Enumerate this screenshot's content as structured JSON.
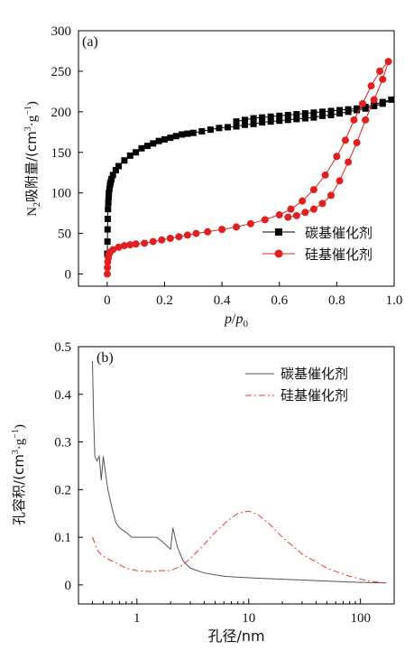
{
  "chart_data": [
    {
      "type": "scatter",
      "panel_label": "(a)",
      "ylabel": {
        "pre": "N",
        "sub": "2",
        "mid": "吸附量/(cm",
        "sup1": "3",
        "dot": "·g",
        "sup2": "−1",
        "post": ")"
      },
      "xlabel": {
        "p": "p",
        "slash": "/",
        "p0": "p",
        "p0_sub": "0"
      },
      "xlim": [
        -0.1,
        1.0
      ],
      "ylim": [
        -15,
        300
      ],
      "x_ticks": [
        "0",
        "0.2",
        "0.4",
        "0.6",
        "0.8",
        "1.0"
      ],
      "y_ticks": [
        "0",
        "50",
        "100",
        "150",
        "200",
        "250",
        "300"
      ],
      "legend_position": "bottom-right",
      "series": [
        {
          "name": "碳基催化剂",
          "color": "#000000",
          "marker": "square",
          "x": [
            0.0005,
            0.001,
            0.0015,
            0.002,
            0.003,
            0.004,
            0.005,
            0.006,
            0.008,
            0.01,
            0.012,
            0.015,
            0.02,
            0.03,
            0.04,
            0.06,
            0.08,
            0.1,
            0.12,
            0.14,
            0.16,
            0.18,
            0.2,
            0.22,
            0.24,
            0.26,
            0.28,
            0.3,
            0.33,
            0.36,
            0.39,
            0.42,
            0.45,
            0.48,
            0.51,
            0.54,
            0.57,
            0.6,
            0.63,
            0.66,
            0.69,
            0.72,
            0.75,
            0.78,
            0.81,
            0.84,
            0.87,
            0.9,
            0.93,
            0.96,
            0.99,
            0.96,
            0.93,
            0.9,
            0.87,
            0.84,
            0.81,
            0.78,
            0.75,
            0.72,
            0.69,
            0.66,
            0.63,
            0.6,
            0.57,
            0.54,
            0.51,
            0.48,
            0.45
          ],
          "y": [
            25,
            40,
            55,
            68,
            80,
            88,
            95,
            100,
            105,
            110,
            113,
            117,
            122,
            128,
            133,
            140,
            146,
            150,
            155,
            158,
            161,
            164,
            166,
            168,
            170,
            172,
            173,
            174,
            176,
            178,
            180,
            181,
            182,
            184,
            185,
            187,
            188,
            189,
            190,
            191,
            192,
            193,
            195,
            196,
            198,
            200,
            202,
            204,
            207,
            210,
            215,
            212,
            209,
            206,
            204,
            203,
            202,
            201,
            200,
            199,
            198,
            197,
            196,
            195,
            194,
            193,
            192,
            190,
            188
          ]
        },
        {
          "name": "硅基催化剂",
          "color": "#e02020",
          "marker": "circle",
          "x": [
            0.0005,
            0.001,
            0.002,
            0.004,
            0.006,
            0.01,
            0.02,
            0.04,
            0.06,
            0.08,
            0.1,
            0.13,
            0.16,
            0.19,
            0.22,
            0.25,
            0.28,
            0.31,
            0.35,
            0.4,
            0.45,
            0.5,
            0.55,
            0.6,
            0.64,
            0.68,
            0.72,
            0.76,
            0.8,
            0.83,
            0.86,
            0.89,
            0.92,
            0.95,
            0.98,
            0.96,
            0.93,
            0.9,
            0.87,
            0.84,
            0.81,
            0.78,
            0.75,
            0.72,
            0.69,
            0.66,
            0.63
          ],
          "y": [
            0,
            8,
            15,
            20,
            24,
            27,
            30,
            33,
            35,
            36,
            37,
            38,
            40,
            42,
            44,
            46,
            48,
            50,
            52,
            55,
            58,
            62,
            67,
            73,
            80,
            90,
            104,
            122,
            145,
            165,
            190,
            210,
            232,
            250,
            262,
            240,
            215,
            190,
            162,
            138,
            115,
            97,
            87,
            80,
            76,
            72,
            70
          ]
        }
      ]
    },
    {
      "type": "line",
      "panel_label": "(b)",
      "ylabel": {
        "pre": "孔容积/(cm",
        "sup1": "3",
        "dot": "·g",
        "sup2": "−1",
        "post": ")"
      },
      "xlabel": "孔径/nm",
      "x_scale": "log",
      "xlim": [
        0.3,
        200
      ],
      "ylim": [
        -0.04,
        0.5
      ],
      "x_ticks": [
        "1",
        "10",
        "100"
      ],
      "y_ticks": [
        "0",
        "0.1",
        "0.2",
        "0.3",
        "0.4",
        "0.5"
      ],
      "legend_position": "top-right",
      "series": [
        {
          "name": "碳基催化剂",
          "color": "#555555",
          "style": "solid",
          "x": [
            0.4,
            0.41,
            0.42,
            0.44,
            0.46,
            0.48,
            0.5,
            0.52,
            0.55,
            0.6,
            0.65,
            0.7,
            0.8,
            0.9,
            1.0,
            1.2,
            1.5,
            1.7,
            1.9,
            2.0,
            2.1,
            2.3,
            2.6,
            3.0,
            4.0,
            6.0,
            10,
            20,
            40,
            80,
            170
          ],
          "y": [
            0.47,
            0.35,
            0.27,
            0.26,
            0.27,
            0.22,
            0.27,
            0.24,
            0.2,
            0.16,
            0.13,
            0.12,
            0.11,
            0.1,
            0.1,
            0.1,
            0.1,
            0.09,
            0.08,
            0.075,
            0.12,
            0.08,
            0.05,
            0.035,
            0.025,
            0.018,
            0.015,
            0.012,
            0.009,
            0.006,
            0.004
          ]
        },
        {
          "name": "硅基催化剂",
          "color": "#e04030",
          "style": "dash-dot",
          "x": [
            0.4,
            0.45,
            0.5,
            0.6,
            0.8,
            1.0,
            1.3,
            1.6,
            2.0,
            2.5,
            3.0,
            4.0,
            5.0,
            6.5,
            8.0,
            10,
            12,
            15,
            20,
            30,
            50,
            80,
            120,
            170
          ],
          "y": [
            0.1,
            0.07,
            0.06,
            0.05,
            0.035,
            0.03,
            0.028,
            0.03,
            0.03,
            0.04,
            0.055,
            0.085,
            0.11,
            0.135,
            0.15,
            0.155,
            0.148,
            0.13,
            0.1,
            0.065,
            0.035,
            0.018,
            0.008,
            0.004
          ]
        }
      ]
    }
  ]
}
